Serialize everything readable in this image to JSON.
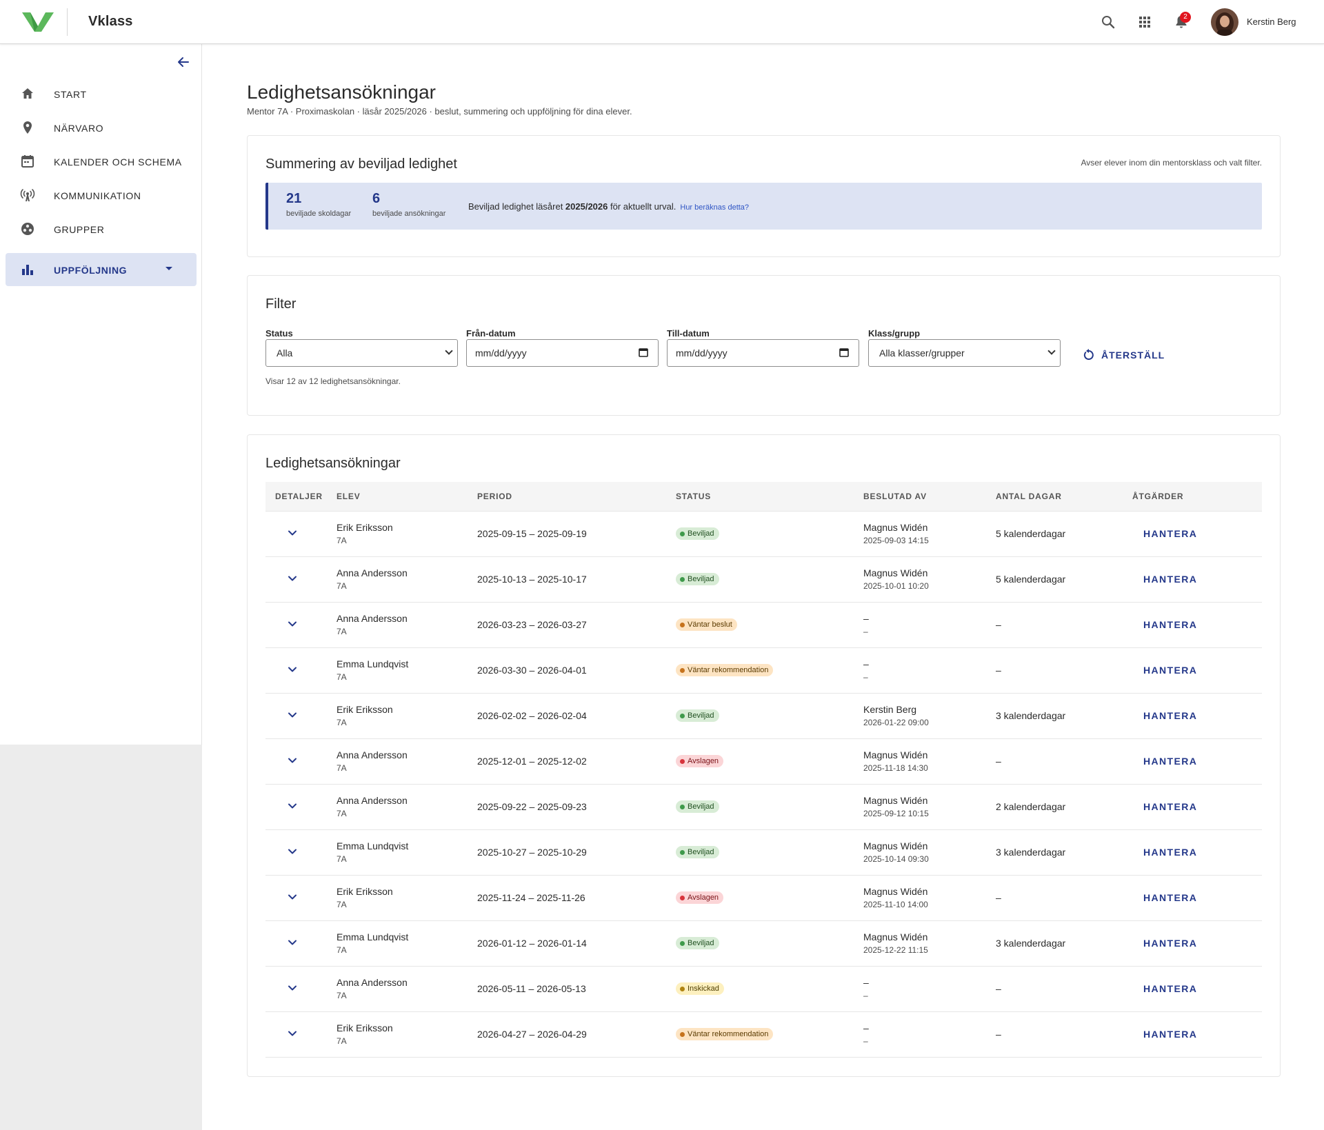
{
  "app": {
    "brand": "Vklass",
    "notification_count": "2",
    "user_name": "Kerstin Berg"
  },
  "sidebar": {
    "items": [
      {
        "label": "START",
        "icon": "home-icon"
      },
      {
        "label": "NÄRVARO",
        "icon": "location-pin-icon"
      },
      {
        "label": "KALENDER OCH SCHEMA",
        "icon": "calendar-icon"
      },
      {
        "label": "KOMMUNIKATION",
        "icon": "broadcast-icon"
      },
      {
        "label": "GRUPPER",
        "icon": "groups-icon"
      },
      {
        "label": "UPPFÖLJNING",
        "icon": "bar-chart-icon",
        "active": true
      }
    ]
  },
  "page": {
    "title": "Ledighetsansökningar",
    "subtitle": "Mentor 7A · Proximaskolan · läsår 2025/2026 · beslut, summering och uppföljning för dina elever."
  },
  "summary": {
    "title": "Summering av beviljad ledighet",
    "note": "Avser elever inom din mentorsklass och valt filter.",
    "days_value": "21",
    "days_label": "beviljade skoldagar",
    "apps_value": "6",
    "apps_label": "beviljade ansökningar",
    "text_before": "Beviljad ledighet läsåret ",
    "text_year": "2025/2026",
    "text_after": " för aktuellt urval.",
    "link": "Hur beräknas detta?"
  },
  "filter": {
    "title": "Filter",
    "status_label": "Status",
    "status_value": "Alla",
    "from_label": "Från-datum",
    "from_placeholder": "mm/dd/yyyy",
    "to_label": "Till-datum",
    "to_placeholder": "mm/dd/yyyy",
    "class_label": "Klass/grupp",
    "class_value": "Alla klasser/grupper",
    "reset_label": "ÅTERSTÄLL",
    "count_text": "Visar 12 av 12 ledighetsansökningar."
  },
  "table": {
    "title": "Ledighetsansökningar",
    "headers": [
      "DETALJER",
      "ELEV",
      "PERIOD",
      "STATUS",
      "BESLUTAD AV",
      "ANTAL DAGAR",
      "ÅTGÄRDER"
    ],
    "action_label": "HANTERA",
    "rows": [
      {
        "name": "Erik Eriksson",
        "class": "7A",
        "period": "2025-09-15 – 2025-09-19",
        "status": "Beviljad",
        "status_type": "green",
        "by": "Magnus Widén",
        "by_date": "2025-09-03 14:15",
        "days": "5 kalenderdagar"
      },
      {
        "name": "Anna Andersson",
        "class": "7A",
        "period": "2025-10-13 – 2025-10-17",
        "status": "Beviljad",
        "status_type": "green",
        "by": "Magnus Widén",
        "by_date": "2025-10-01 10:20",
        "days": "5 kalenderdagar"
      },
      {
        "name": "Anna Andersson",
        "class": "7A",
        "period": "2026-03-23 – 2026-03-27",
        "status": "Väntar beslut",
        "status_type": "orange",
        "by": "–",
        "by_date": "–",
        "days": "–"
      },
      {
        "name": "Emma Lundqvist",
        "class": "7A",
        "period": "2026-03-30 – 2026-04-01",
        "status": "Väntar rekommendation",
        "status_type": "orange",
        "by": "–",
        "by_date": "–",
        "days": "–"
      },
      {
        "name": "Erik Eriksson",
        "class": "7A",
        "period": "2026-02-02 – 2026-02-04",
        "status": "Beviljad",
        "status_type": "green",
        "by": "Kerstin Berg",
        "by_date": "2026-01-22 09:00",
        "days": "3 kalenderdagar"
      },
      {
        "name": "Anna Andersson",
        "class": "7A",
        "period": "2025-12-01 – 2025-12-02",
        "status": "Avslagen",
        "status_type": "red",
        "by": "Magnus Widén",
        "by_date": "2025-11-18 14:30",
        "days": "–"
      },
      {
        "name": "Anna Andersson",
        "class": "7A",
        "period": "2025-09-22 – 2025-09-23",
        "status": "Beviljad",
        "status_type": "green",
        "by": "Magnus Widén",
        "by_date": "2025-09-12 10:15",
        "days": "2 kalenderdagar"
      },
      {
        "name": "Emma Lundqvist",
        "class": "7A",
        "period": "2025-10-27 – 2025-10-29",
        "status": "Beviljad",
        "status_type": "green",
        "by": "Magnus Widén",
        "by_date": "2025-10-14 09:30",
        "days": "3 kalenderdagar"
      },
      {
        "name": "Erik Eriksson",
        "class": "7A",
        "period": "2025-11-24 – 2025-11-26",
        "status": "Avslagen",
        "status_type": "red",
        "by": "Magnus Widén",
        "by_date": "2025-11-10 14:00",
        "days": "–"
      },
      {
        "name": "Emma Lundqvist",
        "class": "7A",
        "period": "2026-01-12 – 2026-01-14",
        "status": "Beviljad",
        "status_type": "green",
        "by": "Magnus Widén",
        "by_date": "2025-12-22 11:15",
        "days": "3 kalenderdagar"
      },
      {
        "name": "Anna Andersson",
        "class": "7A",
        "period": "2026-05-11 – 2026-05-13",
        "status": "Inskickad",
        "status_type": "yellow",
        "by": "–",
        "by_date": "–",
        "days": "–"
      },
      {
        "name": "Erik Eriksson",
        "class": "7A",
        "period": "2026-04-27 – 2026-04-29",
        "status": "Väntar rekommendation",
        "status_type": "orange",
        "by": "–",
        "by_date": "–",
        "days": "–"
      }
    ]
  },
  "colors": {
    "brand_green": "#5cb85c",
    "primary": "#24388a",
    "active_bg": "#dde3f3",
    "link": "#2f55c4"
  }
}
